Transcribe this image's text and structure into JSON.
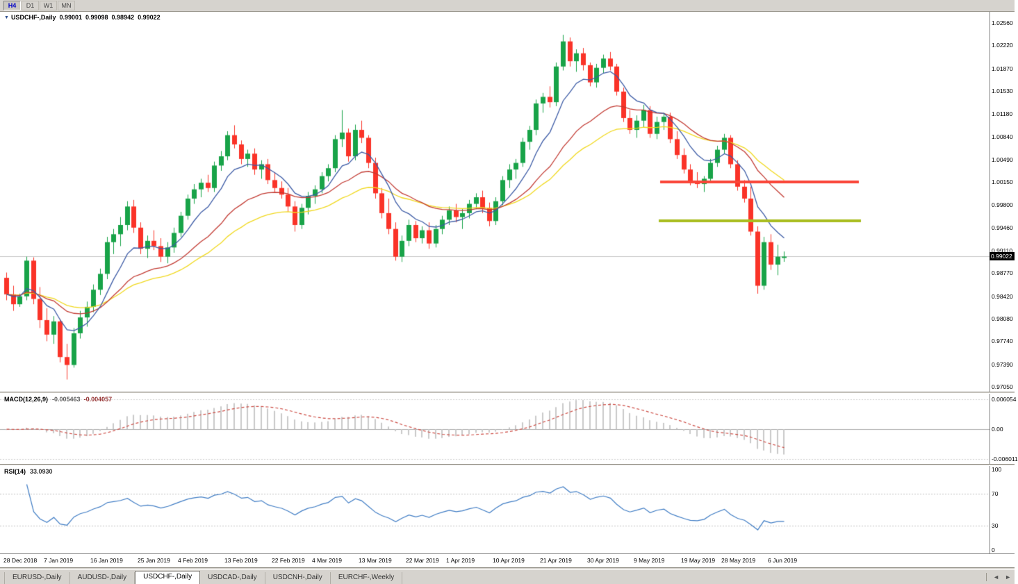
{
  "toolbar": {
    "timeframes": [
      {
        "label": "H4",
        "active": true
      },
      {
        "label": "D1",
        "active": false
      },
      {
        "label": "W1",
        "active": false
      },
      {
        "label": "MN",
        "active": false
      }
    ]
  },
  "chart": {
    "title": {
      "symbol": "USDCHF-,Daily",
      "open": "0.99001",
      "high": "0.99098",
      "low": "0.98942",
      "close": "0.99022"
    },
    "dropdown_icon": "▼",
    "price_axis": {
      "labels": [
        "1.02560",
        "1.02220",
        "1.01870",
        "1.01530",
        "1.01180",
        "1.00840",
        "1.00490",
        "1.00150",
        "0.99800",
        "0.99460",
        "0.99110",
        "0.98770",
        "0.98420",
        "0.98080",
        "0.97740",
        "0.97390",
        "0.97050"
      ],
      "max": 1.0256,
      "min": 0.9705,
      "current_label": "0.99022",
      "current_value": 0.99022
    },
    "levels": [
      {
        "name": "resistance-line",
        "price": 1.0015,
        "color": "#fa4538",
        "width": 4,
        "x_start": 950,
        "x_end": 1236
      },
      {
        "name": "support-line",
        "price": 0.9956,
        "color": "#a9bd20",
        "width": 4,
        "x_start": 948,
        "x_end": 1239
      }
    ],
    "colors": {
      "bull": "#18a348",
      "bear": "#fa3328",
      "price_line": "#c4c4c4"
    }
  },
  "chart_data": {
    "type": "candlestick",
    "symbol": "USDCHF",
    "timeframe": "Daily",
    "y_range": [
      0.9705,
      1.0256
    ],
    "x_labels": [
      {
        "label": "28 Dec 2018",
        "index": 0
      },
      {
        "label": "7 Jan 2019",
        "index": 6
      },
      {
        "label": "16 Jan 2019",
        "index": 13
      },
      {
        "label": "25 Jan 2019",
        "index": 20
      },
      {
        "label": "4 Feb 2019",
        "index": 26
      },
      {
        "label": "13 Feb 2019",
        "index": 33
      },
      {
        "label": "22 Feb 2019",
        "index": 40
      },
      {
        "label": "4 Mar 2019",
        "index": 46
      },
      {
        "label": "13 Mar 2019",
        "index": 53
      },
      {
        "label": "22 Mar 2019",
        "index": 60
      },
      {
        "label": "1 Apr 2019",
        "index": 66
      },
      {
        "label": "10 Apr 2019",
        "index": 73
      },
      {
        "label": "21 Apr 2019",
        "index": 80
      },
      {
        "label": "30 Apr 2019",
        "index": 87
      },
      {
        "label": "9 May 2019",
        "index": 94
      },
      {
        "label": "19 May 2019",
        "index": 101
      },
      {
        "label": "28 May 2019",
        "index": 107
      },
      {
        "label": "6 Jun 2019",
        "index": 114
      }
    ],
    "ohlc": [
      [
        0.987,
        0.9878,
        0.9836,
        0.9845
      ],
      [
        0.9845,
        0.9858,
        0.982,
        0.983
      ],
      [
        0.983,
        0.9846,
        0.9826,
        0.9842
      ],
      [
        0.9842,
        0.9902,
        0.9836,
        0.9896
      ],
      [
        0.9896,
        0.9901,
        0.983,
        0.9838
      ],
      [
        0.9838,
        0.9856,
        0.9794,
        0.9806
      ],
      [
        0.9806,
        0.9824,
        0.9774,
        0.9784
      ],
      [
        0.9784,
        0.9812,
        0.977,
        0.9804
      ],
      [
        0.9804,
        0.9808,
        0.9742,
        0.975
      ],
      [
        0.975,
        0.977,
        0.9716,
        0.9738
      ],
      [
        0.9738,
        0.9794,
        0.9734,
        0.9786
      ],
      [
        0.9786,
        0.982,
        0.9778,
        0.981
      ],
      [
        0.981,
        0.9834,
        0.9796,
        0.9826
      ],
      [
        0.9826,
        0.986,
        0.9818,
        0.9852
      ],
      [
        0.9852,
        0.9884,
        0.9844,
        0.9876
      ],
      [
        0.9876,
        0.9932,
        0.9868,
        0.9924
      ],
      [
        0.9924,
        0.9944,
        0.9906,
        0.9936
      ],
      [
        0.9936,
        0.9962,
        0.9918,
        0.995
      ],
      [
        0.995,
        0.9986,
        0.9942,
        0.9978
      ],
      [
        0.9978,
        0.9988,
        0.9938,
        0.9946
      ],
      [
        0.9946,
        0.9954,
        0.9906,
        0.9914
      ],
      [
        0.9914,
        0.9934,
        0.99,
        0.9926
      ],
      [
        0.9926,
        0.9942,
        0.9912,
        0.9918
      ],
      [
        0.9918,
        0.993,
        0.9894,
        0.9902
      ],
      [
        0.9902,
        0.9924,
        0.9892,
        0.9916
      ],
      [
        0.9916,
        0.9946,
        0.9908,
        0.9938
      ],
      [
        0.9938,
        0.997,
        0.9932,
        0.9964
      ],
      [
        0.9964,
        0.9996,
        0.9958,
        0.999
      ],
      [
        0.999,
        1.0012,
        0.9982,
        1.0004
      ],
      [
        1.0004,
        1.002,
        0.9992,
        1.0014
      ],
      [
        1.0014,
        1.0026,
        1.0,
        1.0006
      ],
      [
        1.0006,
        1.0046,
        1.0,
        1.004
      ],
      [
        1.004,
        1.0062,
        1.0032,
        1.0054
      ],
      [
        1.0054,
        1.0092,
        1.0048,
        1.0086
      ],
      [
        1.0086,
        1.0101,
        1.0066,
        1.0072
      ],
      [
        1.0072,
        1.0078,
        1.0042,
        1.005
      ],
      [
        1.005,
        1.0064,
        1.0038,
        1.0058
      ],
      [
        1.0058,
        1.0066,
        1.0026,
        1.0034
      ],
      [
        1.0034,
        1.0048,
        1.002,
        1.0042
      ],
      [
        1.0042,
        1.005,
        1.0012,
        1.0018
      ],
      [
        1.0018,
        1.003,
        1.0,
        1.0006
      ],
      [
        1.0006,
        1.0016,
        0.999,
        0.9996
      ],
      [
        0.9996,
        1.0006,
        0.997,
        0.9978
      ],
      [
        0.9978,
        0.9986,
        0.994,
        0.995
      ],
      [
        0.995,
        0.9982,
        0.9944,
        0.9976
      ],
      [
        0.9976,
        1.0,
        0.9966,
        0.9994
      ],
      [
        0.9994,
        1.001,
        0.9982,
        1.0004
      ],
      [
        1.0004,
        1.003,
        0.9998,
        1.0024
      ],
      [
        1.0024,
        1.0042,
        1.0016,
        1.0036
      ],
      [
        1.0036,
        1.0086,
        1.003,
        1.008
      ],
      [
        1.008,
        1.0124,
        1.0068,
        1.009
      ],
      [
        1.009,
        1.0096,
        1.0046,
        1.0054
      ],
      [
        1.0054,
        1.0102,
        1.0048,
        1.0094
      ],
      [
        1.0094,
        1.0108,
        1.0074,
        1.0082
      ],
      [
        1.0082,
        1.0086,
        1.0036,
        1.0044
      ],
      [
        1.0044,
        1.0052,
        0.999,
        0.9998
      ],
      [
        0.9998,
        1.0006,
        0.996,
        0.9968
      ],
      [
        0.9968,
        0.999,
        0.9936,
        0.9944
      ],
      [
        0.9944,
        0.9954,
        0.9896,
        0.9902
      ],
      [
        0.9902,
        0.9934,
        0.9894,
        0.9926
      ],
      [
        0.9926,
        0.9958,
        0.9918,
        0.995
      ],
      [
        0.995,
        0.9956,
        0.9924,
        0.993
      ],
      [
        0.993,
        0.9948,
        0.9922,
        0.9942
      ],
      [
        0.9942,
        0.9954,
        0.9914,
        0.9922
      ],
      [
        0.9922,
        0.995,
        0.9916,
        0.9944
      ],
      [
        0.9944,
        0.9964,
        0.9936,
        0.9958
      ],
      [
        0.9958,
        0.9978,
        0.995,
        0.9972
      ],
      [
        0.9972,
        0.9982,
        0.9954,
        0.9962
      ],
      [
        0.9962,
        0.9974,
        0.9944,
        0.9968
      ],
      [
        0.9968,
        0.9988,
        0.996,
        0.9982
      ],
      [
        0.9982,
        0.9998,
        0.9974,
        0.9992
      ],
      [
        0.9992,
        1.0002,
        0.9968,
        0.9976
      ],
      [
        0.9976,
        0.9984,
        0.9948,
        0.9956
      ],
      [
        0.9956,
        0.9992,
        0.995,
        0.9986
      ],
      [
        0.9986,
        1.0024,
        0.998,
        1.0018
      ],
      [
        1.0018,
        1.0042,
        1.0006,
        1.0034
      ],
      [
        1.0034,
        1.005,
        1.002,
        1.0044
      ],
      [
        1.0044,
        1.0082,
        1.0038,
        1.0076
      ],
      [
        1.0076,
        1.01,
        1.0064,
        1.0094
      ],
      [
        1.0094,
        1.014,
        1.0086,
        1.0134
      ],
      [
        1.0134,
        1.015,
        1.012,
        1.0144
      ],
      [
        1.0144,
        1.016,
        1.0128,
        1.0136
      ],
      [
        1.0136,
        1.0196,
        1.013,
        1.019
      ],
      [
        1.019,
        1.0238,
        1.0184,
        1.0228
      ],
      [
        1.0228,
        1.0234,
        1.019,
        1.0198
      ],
      [
        1.0198,
        1.0216,
        1.0182,
        1.021
      ],
      [
        1.021,
        1.0218,
        1.0184,
        1.0192
      ],
      [
        1.0192,
        1.0196,
        1.016,
        1.0166
      ],
      [
        1.0166,
        1.0194,
        1.0158,
        1.0188
      ],
      [
        1.0188,
        1.0208,
        1.018,
        1.0202
      ],
      [
        1.0202,
        1.0212,
        1.0184,
        1.019
      ],
      [
        1.019,
        1.0194,
        1.0146,
        1.0152
      ],
      [
        1.0152,
        1.0158,
        1.0106,
        1.0112
      ],
      [
        1.0112,
        1.0124,
        1.0088,
        1.0094
      ],
      [
        1.0094,
        1.0116,
        1.0082,
        1.0108
      ],
      [
        1.0108,
        1.0132,
        1.0098,
        1.0124
      ],
      [
        1.0124,
        1.013,
        1.0082,
        1.0088
      ],
      [
        1.0088,
        1.0114,
        1.008,
        1.0106
      ],
      [
        1.0106,
        1.012,
        1.0094,
        1.0114
      ],
      [
        1.0114,
        1.012,
        1.0074,
        1.008
      ],
      [
        1.008,
        1.0092,
        1.005,
        1.0056
      ],
      [
        1.0056,
        1.0066,
        1.0028,
        1.0034
      ],
      [
        1.0034,
        1.0042,
        1.001,
        1.0016
      ],
      [
        1.0016,
        1.003,
        1.0006,
        1.0012
      ],
      [
        1.0012,
        1.0024,
        1.0,
        1.002
      ],
      [
        1.002,
        1.005,
        1.0014,
        1.0044
      ],
      [
        1.0044,
        1.007,
        1.0038,
        1.0064
      ],
      [
        1.0064,
        1.0088,
        1.0058,
        1.0082
      ],
      [
        1.0082,
        1.0086,
        1.0036,
        1.0042
      ],
      [
        1.0042,
        1.0048,
        1.0002,
        1.0008
      ],
      [
        1.0008,
        1.0018,
        0.9984,
        0.999
      ],
      [
        0.999,
        1.0008,
        0.9934,
        0.994
      ],
      [
        0.994,
        0.9948,
        0.9846,
        0.9858
      ],
      [
        0.9858,
        0.9932,
        0.9852,
        0.9924
      ],
      [
        0.9924,
        0.9936,
        0.9882,
        0.989
      ],
      [
        0.989,
        0.992,
        0.9874,
        0.9902
      ],
      [
        0.99001,
        0.99098,
        0.98942,
        0.99022
      ]
    ],
    "moving_averages": [
      {
        "period": 8,
        "color": "#3b5aa5"
      },
      {
        "period": 21,
        "color": "#c23a32"
      },
      {
        "period": 34,
        "color": "#f0d81e"
      }
    ]
  },
  "macd": {
    "title": "MACD(12,26,9)",
    "main_value": "-0.005463",
    "signal_value": "-0.004057",
    "params": {
      "fast": 12,
      "slow": 26,
      "signal": 9
    },
    "axis": [
      {
        "label": "0.006054",
        "value": 0.006054
      },
      {
        "label": "0.00",
        "value": 0
      },
      {
        "label": "-0.006011",
        "value": -0.006011
      }
    ],
    "histogram_color": "#c9c9c9",
    "signal_color": "#cc4a42"
  },
  "rsi": {
    "title": "RSI(14)",
    "value": "33.0930",
    "period": 14,
    "axis": [
      {
        "label": "100",
        "value": 100
      },
      {
        "label": "70",
        "value": 70
      },
      {
        "label": "30",
        "value": 30
      },
      {
        "label": "0",
        "value": 0
      }
    ],
    "line_color": "#3f7cc4"
  },
  "tabs": {
    "items": [
      {
        "label": "EURUSD-,Daily",
        "active": false
      },
      {
        "label": "AUDUSD-,Daily",
        "active": false
      },
      {
        "label": "USDCHF-,Daily",
        "active": true
      },
      {
        "label": "USDCAD-,Daily",
        "active": false
      },
      {
        "label": "USDCNH-,Daily",
        "active": false
      },
      {
        "label": "EURCHF-,Weekly",
        "active": false
      }
    ],
    "scroll_left_icon": "◄",
    "scroll_right_icon": "►"
  }
}
